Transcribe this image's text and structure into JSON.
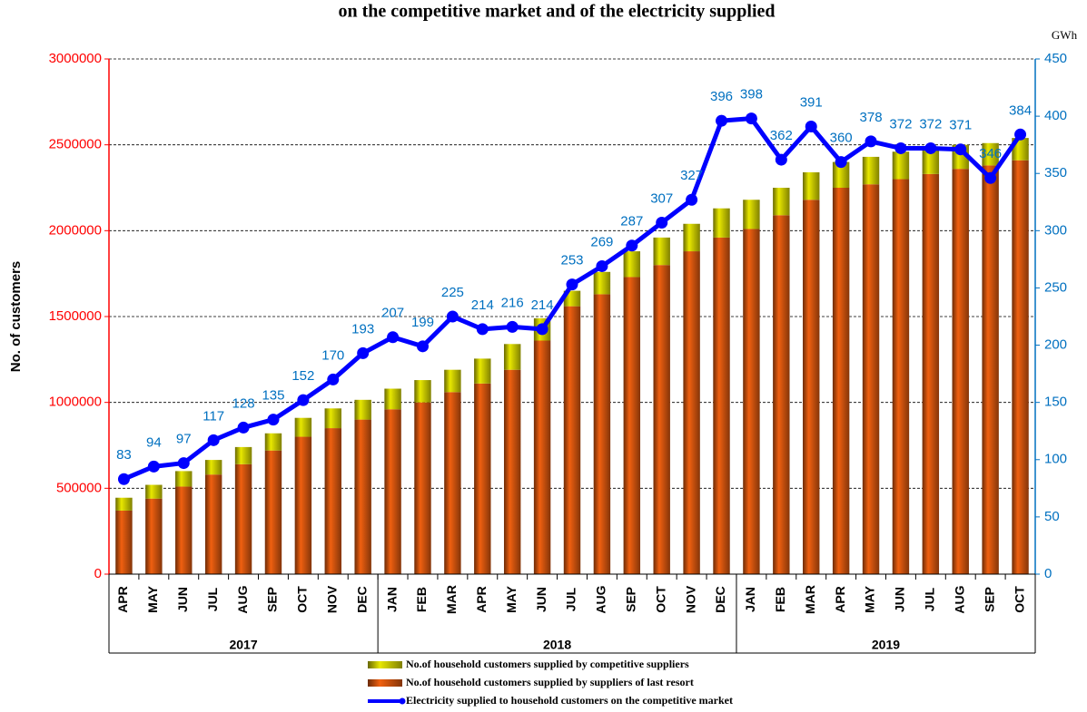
{
  "chart_data": {
    "type": "bar",
    "title": "on the competitive market and of the electricity supplied",
    "ylabel": "No. of customers",
    "y2label": "GWh",
    "categories": [
      "APR",
      "MAY",
      "JUN",
      "JUL",
      "AUG",
      "SEP",
      "OCT",
      "NOV",
      "DEC",
      "JAN",
      "FEB",
      "MAR",
      "APR",
      "MAY",
      "JUN",
      "JUL",
      "AUG",
      "SEP",
      "OCT",
      "NOV",
      "DEC",
      "JAN",
      "FEB",
      "MAR",
      "APR",
      "MAY",
      "JUN",
      "JUL",
      "AUG",
      "SEP",
      "OCT"
    ],
    "category_groups": [
      "2017",
      "2017",
      "2017",
      "2017",
      "2017",
      "2017",
      "2017",
      "2017",
      "2017",
      "2018",
      "2018",
      "2018",
      "2018",
      "2018",
      "2018",
      "2018",
      "2018",
      "2018",
      "2018",
      "2018",
      "2018",
      "2019",
      "2019",
      "2019",
      "2019",
      "2019",
      "2019",
      "2019",
      "2019",
      "2019",
      "2019"
    ],
    "series": [
      {
        "name": "No.of household customers supplied by competitive suppliers",
        "type": "bar",
        "color": "#e8e800",
        "values": [
          75000,
          80000,
          90000,
          85000,
          100000,
          100000,
          110000,
          115000,
          115000,
          120000,
          130000,
          130000,
          145000,
          150000,
          130000,
          90000,
          130000,
          150000,
          160000,
          160000,
          170000,
          170000,
          160000,
          160000,
          150000,
          160000,
          160000,
          150000,
          140000,
          130000,
          130000
        ]
      },
      {
        "name": "No.of household customers supplied by suppliers of last resort",
        "type": "bar",
        "color": "#f06010",
        "values": [
          370000,
          440000,
          510000,
          580000,
          640000,
          720000,
          800000,
          850000,
          900000,
          960000,
          1000000,
          1060000,
          1110000,
          1190000,
          1360000,
          1560000,
          1630000,
          1730000,
          1800000,
          1880000,
          1960000,
          2010000,
          2090000,
          2180000,
          2250000,
          2270000,
          2300000,
          2330000,
          2360000,
          2380000,
          2410000
        ]
      },
      {
        "name": "Electricity supplied to household customers on the competitive market",
        "type": "line",
        "axis": "y2",
        "color": "#0000ff",
        "label_color": "#0070c0",
        "values": [
          83,
          94,
          97,
          117,
          128,
          135,
          152,
          170,
          193,
          207,
          199,
          225,
          214,
          216,
          214,
          253,
          269,
          287,
          307,
          327,
          396,
          398,
          362,
          391,
          360,
          378,
          372,
          372,
          371,
          346,
          384
        ]
      }
    ],
    "ylim": [
      0,
      3000000
    ],
    "yticks": [
      0,
      500000,
      1000000,
      1500000,
      2000000,
      2500000,
      3000000
    ],
    "y2lim": [
      0,
      450
    ],
    "y2ticks": [
      0,
      50,
      100,
      150,
      200,
      250,
      300,
      350,
      400,
      450
    ],
    "grid": true,
    "y_color": "#ff0000",
    "y2_color": "#0070c0",
    "legend": "bottom"
  }
}
